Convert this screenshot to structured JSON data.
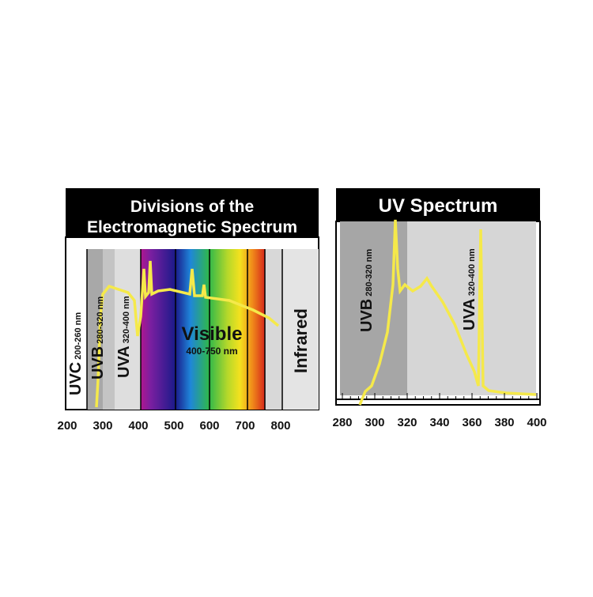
{
  "left": {
    "title": [
      "Divisions of the",
      "Electromagnetic Spectrum"
    ],
    "regions": [
      {
        "name": "UVC",
        "range": "200-260 nm"
      },
      {
        "name": "UVB",
        "range": "280-320 nm"
      },
      {
        "name": "UVA",
        "range": "320-400 nm"
      }
    ],
    "visible": {
      "name": "Visible",
      "range": "400-750 nm"
    },
    "infrared": "Infrared",
    "axis_labels": [
      "200",
      "300",
      "400",
      "500",
      "600",
      "700",
      "800"
    ]
  },
  "right": {
    "title": "UV Spectrum",
    "regions": [
      {
        "name": "UVB",
        "range": "280-320 nm"
      },
      {
        "name": "UVA",
        "range": "320-400 nm"
      }
    ],
    "axis_labels": [
      "280",
      "300",
      "320",
      "340",
      "360",
      "380",
      "400"
    ]
  }
}
